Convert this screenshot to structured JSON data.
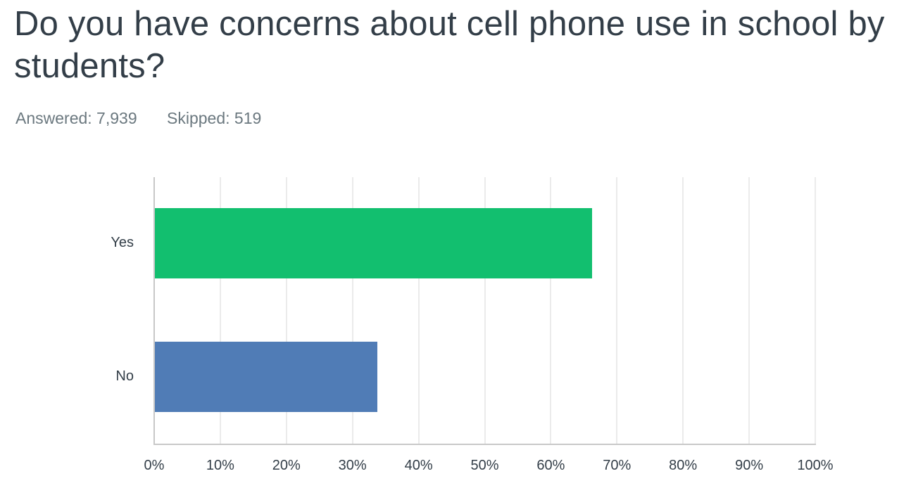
{
  "question": {
    "title": "Do you have concerns about cell phone use in school by students?",
    "answered_label": "Answered: 7,939",
    "skipped_label": "Skipped: 519"
  },
  "colors": {
    "yes": "#12bf6f",
    "no": "#507cb6"
  },
  "chart_data": {
    "type": "bar",
    "orientation": "horizontal",
    "title": "Do you have concerns about cell phone use in school by students?",
    "categories": [
      "Yes",
      "No"
    ],
    "values": [
      66.2,
      33.8
    ],
    "units": "%",
    "xlabel": "",
    "ylabel": "",
    "xlim": [
      0,
      100
    ],
    "x_ticks": [
      "0%",
      "10%",
      "20%",
      "30%",
      "40%",
      "50%",
      "60%",
      "70%",
      "80%",
      "90%",
      "100%"
    ],
    "grid": true,
    "legend": "none",
    "answered": 7939,
    "skipped": 519
  }
}
